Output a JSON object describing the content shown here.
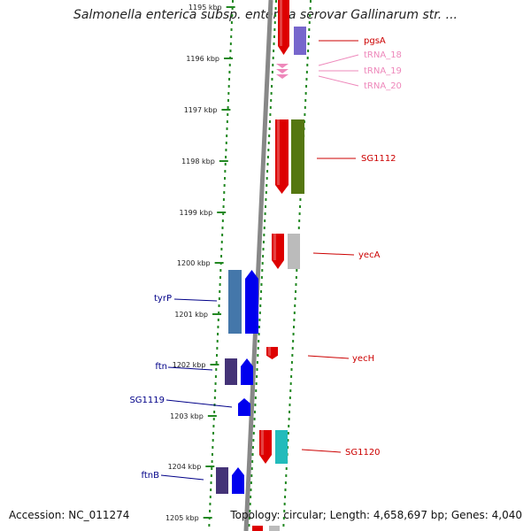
{
  "title": "Salmonella enterica subsp. enterica serovar Gallinarum str. ...",
  "footer": {
    "accession": "Accession: NC_011274",
    "summary": "Topology: circular; Length: 4,658,697 bp; Genes: 4,040"
  },
  "colors": {
    "backbone": "#888888",
    "dotted_track": "#228822",
    "red": "#dd0000",
    "blue": "#0000ee",
    "trna": "#ee88bb",
    "dark_purple": "#443377",
    "light_purple": "#7766cc",
    "olive": "#557711",
    "gray": "#bbbbbb",
    "steel_blue": "#4477aa",
    "cyan": "#22bbbb",
    "label_red": "#cc0000",
    "label_blue": "#000088",
    "label_pink": "#ee88bb"
  },
  "diagram": {
    "kbp_ticks": [
      "1195 kbp",
      "1196 kbp",
      "1197 kbp",
      "1198 kbp",
      "1199 kbp",
      "1200 kbp",
      "1201 kbp",
      "1202 kbp",
      "1203 kbp",
      "1204 kbp",
      "1205 kbp"
    ],
    "gene_labels_right": [
      {
        "text": "pgsA",
        "color": "label_red"
      },
      {
        "text": "tRNA_18",
        "color": "label_pink"
      },
      {
        "text": "tRNA_19",
        "color": "label_pink"
      },
      {
        "text": "tRNA_20",
        "color": "label_pink"
      },
      {
        "text": "SG1112",
        "color": "label_red"
      },
      {
        "text": "yecA",
        "color": "label_red"
      },
      {
        "text": "yecH",
        "color": "label_red"
      },
      {
        "text": "SG1120",
        "color": "label_red"
      }
    ],
    "gene_labels_left": [
      {
        "text": "tyrP",
        "color": "label_blue"
      },
      {
        "text": "ftn",
        "color": "label_blue"
      },
      {
        "text": "SG1119",
        "color": "label_blue"
      },
      {
        "text": "ftnB",
        "color": "label_blue"
      }
    ]
  }
}
